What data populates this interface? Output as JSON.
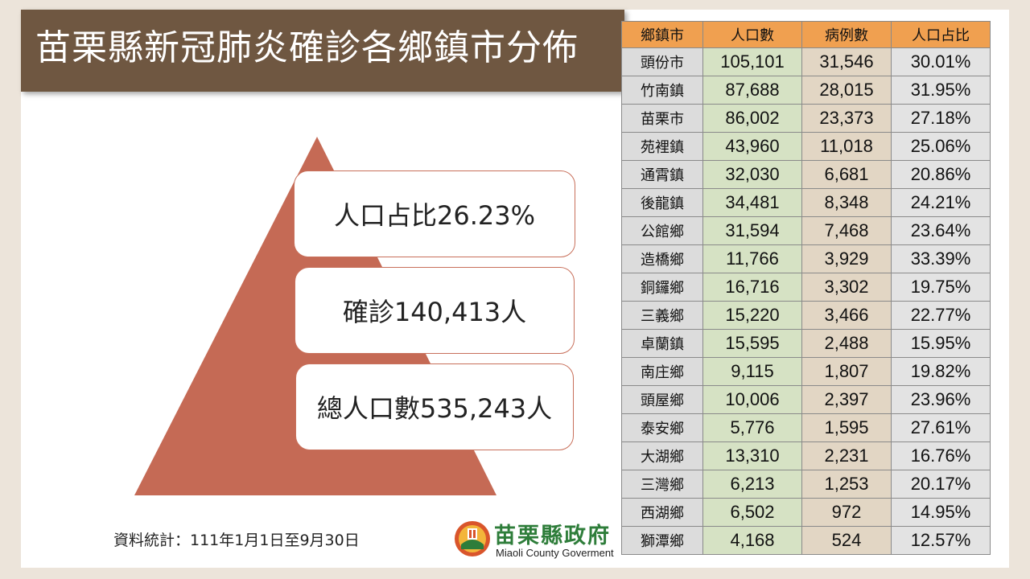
{
  "title": "苗栗縣新冠肺炎確診各鄉鎮市分佈",
  "pyramid": {
    "top": "人口占比26.23%",
    "middle": "確診140,413人",
    "bottom": "總人口數535,243人"
  },
  "source": "資料統計：111年1月1日至9月30日",
  "logo": {
    "name": "苗栗縣政府",
    "subtitle": "Miaoli County Goverment"
  },
  "table": {
    "headers": [
      "鄉鎮市",
      "人口數",
      "病例數",
      "人口占比"
    ],
    "rows": [
      [
        "頭份市",
        "105,101",
        "31,546",
        "30.01%"
      ],
      [
        "竹南鎮",
        "87,688",
        "28,015",
        "31.95%"
      ],
      [
        "苗栗市",
        "86,002",
        "23,373",
        "27.18%"
      ],
      [
        "苑裡鎮",
        "43,960",
        "11,018",
        "25.06%"
      ],
      [
        "通霄鎮",
        "32,030",
        "6,681",
        "20.86%"
      ],
      [
        "後龍鎮",
        "34,481",
        "8,348",
        "24.21%"
      ],
      [
        "公館鄉",
        "31,594",
        "7,468",
        "23.64%"
      ],
      [
        "造橋鄉",
        "11,766",
        "3,929",
        "33.39%"
      ],
      [
        "銅鑼鄉",
        "16,716",
        "3,302",
        "19.75%"
      ],
      [
        "三義鄉",
        "15,220",
        "3,466",
        "22.77%"
      ],
      [
        "卓蘭鎮",
        "15,595",
        "2,488",
        "15.95%"
      ],
      [
        "南庄鄉",
        "9,115",
        "1,807",
        "19.82%"
      ],
      [
        "頭屋鄉",
        "10,006",
        "2,397",
        "23.96%"
      ],
      [
        "泰安鄉",
        "5,776",
        "1,595",
        "27.61%"
      ],
      [
        "大湖鄉",
        "13,310",
        "2,231",
        "16.76%"
      ],
      [
        "三灣鄉",
        "6,213",
        "1,253",
        "20.17%"
      ],
      [
        "西湖鄉",
        "6,502",
        "972",
        "14.95%"
      ],
      [
        "獅潭鄉",
        "4,168",
        "524",
        "12.57%"
      ]
    ]
  },
  "colors": {
    "title_bar": "#6f5741",
    "pyramid": "#c56a55",
    "header": "#f0a050",
    "population_column": "#d6e2c4",
    "cases_column": "#e2d6c4",
    "logo_green": "#2e7d3a"
  }
}
